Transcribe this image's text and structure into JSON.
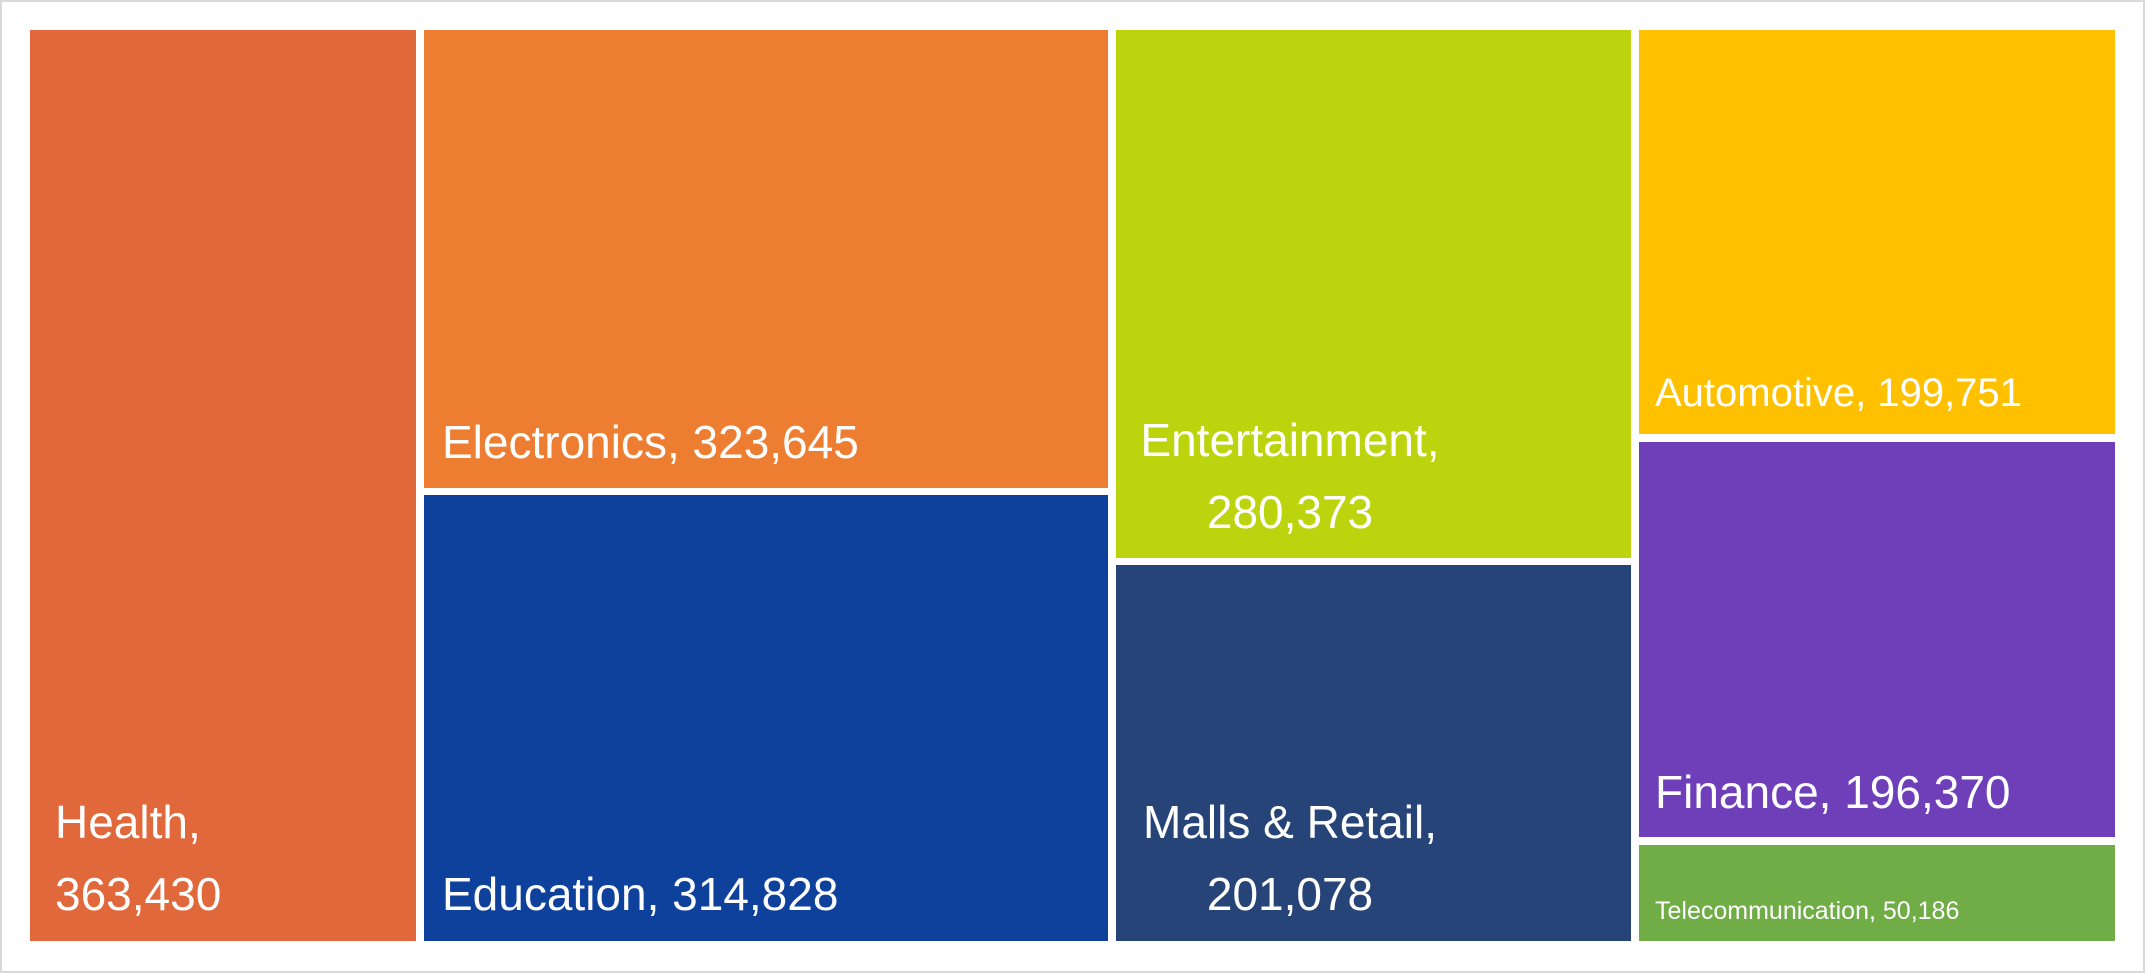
{
  "chart_data": {
    "type": "treemap",
    "title": "",
    "categories": [
      "Health",
      "Electronics",
      "Education",
      "Entertainment",
      "Malls & Retail",
      "Automotive",
      "Finance",
      "Telecommunication"
    ],
    "values": [
      363430,
      323645,
      314828,
      280373,
      201078,
      199751,
      196370,
      50186
    ],
    "value_labels": [
      "363,430",
      "323,645",
      "314,828",
      "280,373",
      "201,078",
      "199,751",
      "196,370",
      "50,186"
    ],
    "colors": [
      "#E1683A",
      "#ED7D31",
      "#0E419C",
      "#BBD40E",
      "#264478",
      "#FFC000",
      "#6E3FB9",
      "#70AD47"
    ],
    "data_labels": "category, value",
    "legend": "none"
  }
}
